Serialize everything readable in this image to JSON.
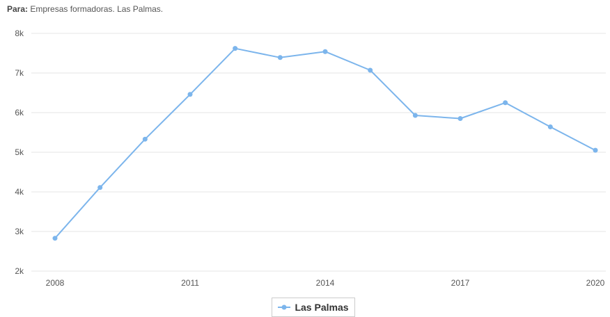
{
  "filter": {
    "label": "Para:",
    "value": "Empresas formadoras. Las Palmas."
  },
  "colors": {
    "series": "#7cb5ec",
    "grid": "#e6e6e6",
    "axis_text": "#555555"
  },
  "chart_data": {
    "type": "line",
    "x": [
      2008,
      2009,
      2010,
      2011,
      2012,
      2013,
      2014,
      2015,
      2016,
      2017,
      2018,
      2019,
      2020
    ],
    "xticks": [
      "2008",
      "2011",
      "2014",
      "2017",
      "2020"
    ],
    "yticks": [
      "2k",
      "3k",
      "4k",
      "5k",
      "6k",
      "7k",
      "8k"
    ],
    "ylim": [
      2000,
      8000
    ],
    "grid": "horizontal",
    "legend_position": "bottom-center",
    "series": [
      {
        "name": "Las Palmas",
        "values": [
          2830,
          4110,
          5330,
          6460,
          7620,
          7390,
          7540,
          7070,
          5930,
          5850,
          6250,
          5640,
          5050
        ]
      }
    ]
  }
}
